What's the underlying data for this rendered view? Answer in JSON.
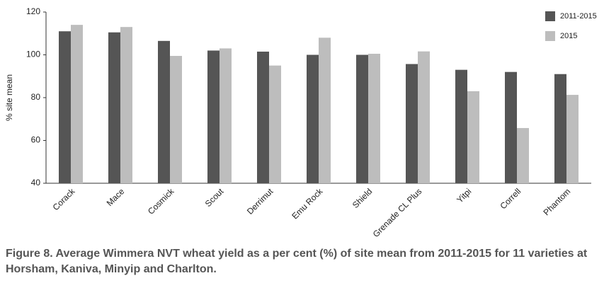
{
  "chart_data": {
    "type": "bar",
    "title": "Figure 8. Average Wimmera NVT wheat yield as a per cent (%) of site mean from 2011-2015 for 11 varieties at Horsham, Kaniva, Minyip and Charlton.",
    "y_label": "% site mean",
    "categories": [
      "Corack",
      "Mace",
      "Cosmick",
      "Scout",
      "Derrimut",
      "Emu Rock",
      "Shield",
      "Grenade CL Plus",
      "Yitpi",
      "Correll",
      "Phantom"
    ],
    "series": [
      {
        "name": "2011-2015",
        "color": "#555555",
        "values": [
          111,
          110.5,
          106.5,
          102,
          101.5,
          100,
          100,
          95.7,
          93,
          92,
          91
        ]
      },
      {
        "name": "2015",
        "color": "#bdbdbd",
        "values": [
          114,
          113,
          99.5,
          103,
          95,
          108,
          100.5,
          101.6,
          83,
          65.8,
          81.3
        ]
      }
    ],
    "ylim": [
      40,
      120
    ],
    "yticks": [
      40,
      60,
      80,
      100,
      120
    ],
    "grid": false,
    "legend": "top-right"
  }
}
